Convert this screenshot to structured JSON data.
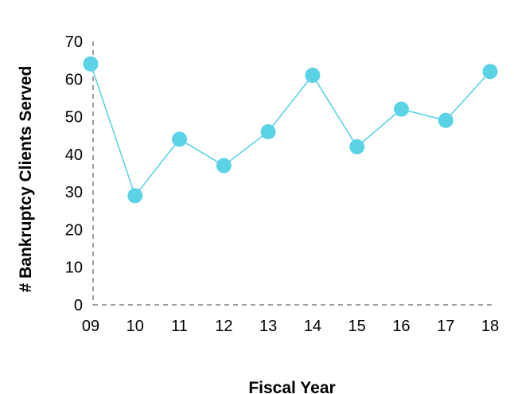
{
  "chart_data": {
    "type": "line",
    "title": "",
    "xlabel": "Fiscal Year",
    "ylabel": "# Bankruptcy Clients Served",
    "categories": [
      "09",
      "10",
      "11",
      "12",
      "13",
      "14",
      "15",
      "16",
      "17",
      "18"
    ],
    "series": [
      {
        "values": [
          64,
          29,
          44,
          37,
          46,
          61,
          42,
          52,
          49,
          62
        ]
      }
    ],
    "ylim": [
      0,
      70
    ],
    "yticks": [
      0,
      10,
      20,
      30,
      40,
      50,
      60,
      70
    ],
    "grid": false,
    "legend": "none",
    "series_color": "#5BD3E6",
    "axis_color": "#808080"
  }
}
